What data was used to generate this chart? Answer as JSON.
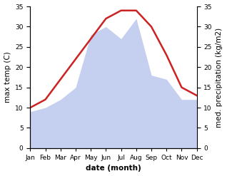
{
  "months": [
    "Jan",
    "Feb",
    "Mar",
    "Apr",
    "May",
    "Jun",
    "Jul",
    "Aug",
    "Sep",
    "Oct",
    "Nov",
    "Dec"
  ],
  "temperature": [
    10,
    12,
    17,
    22,
    27,
    32,
    34,
    34,
    30,
    23,
    15,
    13
  ],
  "precipitation": [
    9,
    10,
    12,
    15,
    28,
    30,
    27,
    32,
    18,
    17,
    12,
    12
  ],
  "temp_color": "#cc2222",
  "precip_color": "#c5cff0",
  "background_color": "#ffffff",
  "ylim": [
    0,
    35
  ],
  "ylabel_left": "max temp (C)",
  "ylabel_right": "med. precipitation (kg/m2)",
  "xlabel": "date (month)",
  "temp_linewidth": 1.8,
  "label_fontsize": 7.5,
  "tick_fontsize": 6.5
}
